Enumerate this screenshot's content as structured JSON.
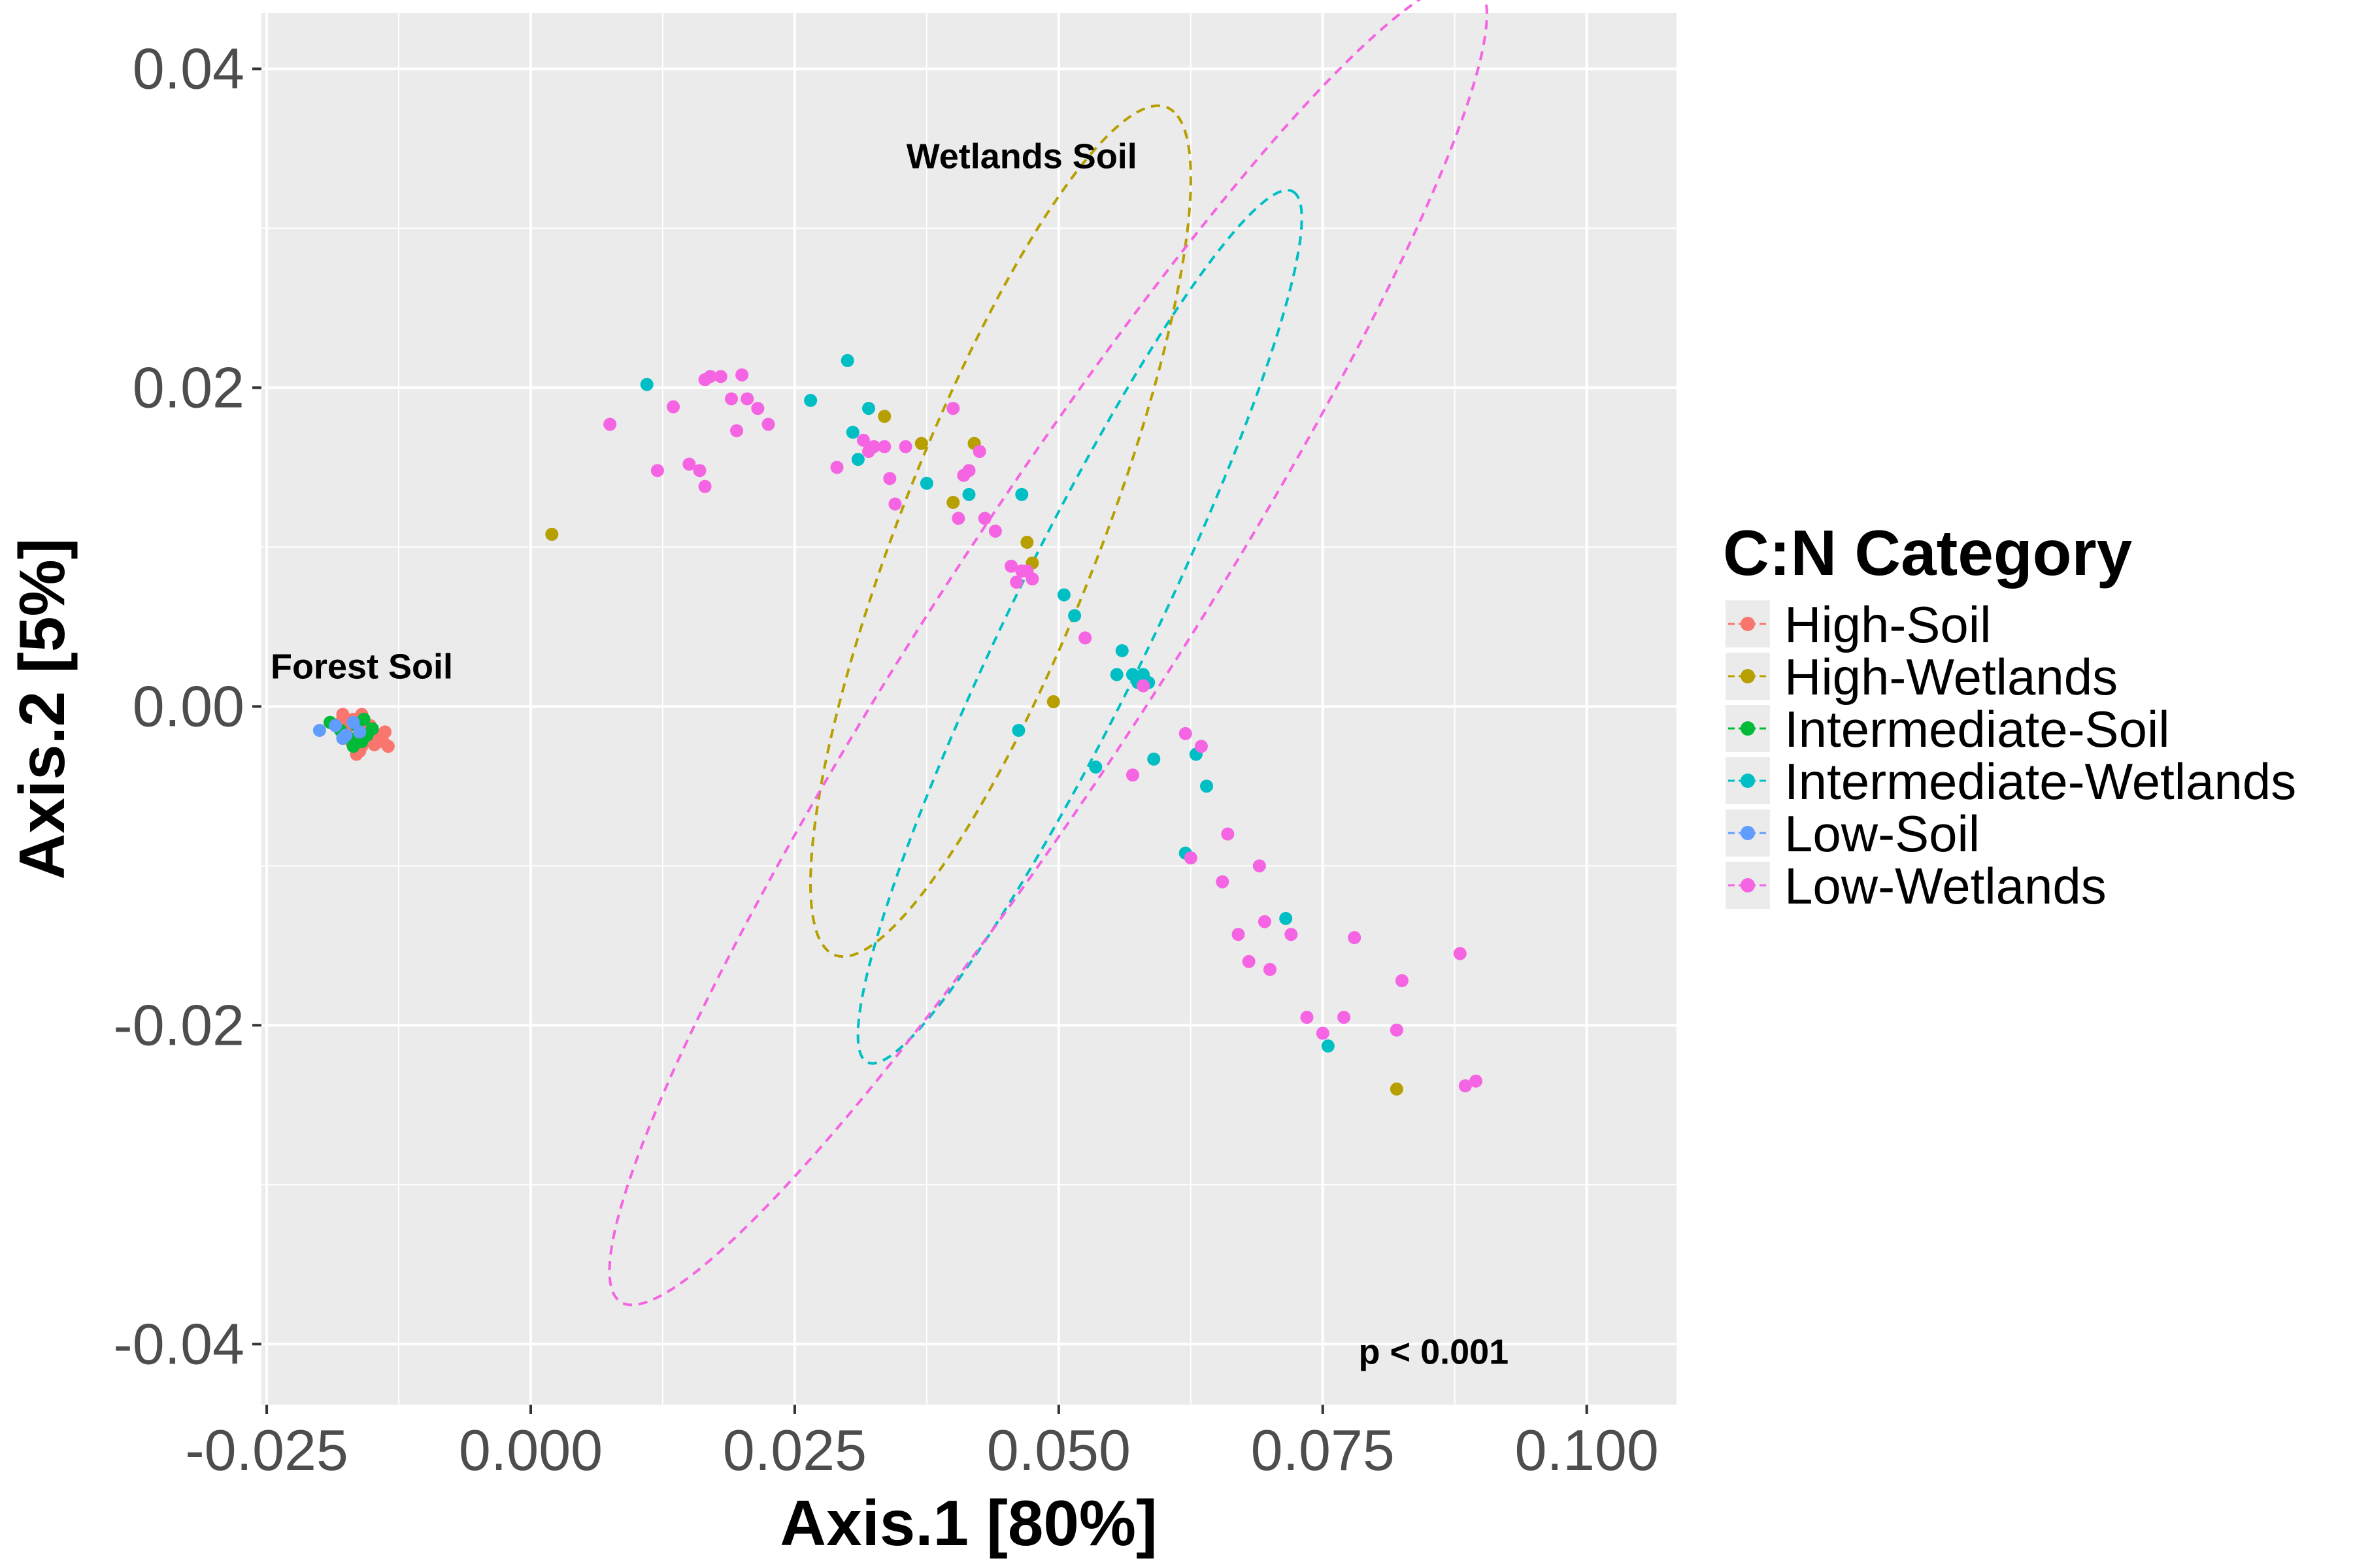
{
  "chart_data": {
    "type": "scatter",
    "title": "",
    "xlabel": "Axis.1   [80%]",
    "ylabel": "Axis.2   [5%]",
    "xlim": [
      -0.0255,
      0.1085
    ],
    "ylim": [
      -0.0438,
      0.0435
    ],
    "x_ticks": [
      -0.025,
      0.0,
      0.025,
      0.05,
      0.075,
      0.1
    ],
    "x_tick_labels": [
      "-0.025",
      "0.000",
      "0.025",
      "0.050",
      "0.075",
      "0.100"
    ],
    "y_ticks": [
      -0.04,
      -0.02,
      0.0,
      0.02,
      0.04
    ],
    "y_tick_labels": [
      "-0.04",
      "-0.02",
      "0.00",
      "0.02",
      "0.04"
    ],
    "grid": true,
    "legend": {
      "title": "C:N Category",
      "position": "right"
    },
    "annotations": [
      {
        "text": "Wetlands Soil",
        "x": 0.0465,
        "y": 0.0345
      },
      {
        "text": "Forest Soil",
        "x": -0.016,
        "y": 0.0025
      },
      {
        "text": "p < 0.001",
        "x": 0.0855,
        "y": -0.0405
      }
    ],
    "ellipses": [
      {
        "series": "High-Soil",
        "cx": -0.0167,
        "cy": -0.0015,
        "rx": 0.0017,
        "ry": 0.0009,
        "angle": 0
      },
      {
        "series": "High-Wetlands",
        "cx": 0.0445,
        "cy": 0.011,
        "rx": 0.031,
        "ry": 0.0087,
        "angle": 58
      },
      {
        "series": "Intermediate-Wetlands",
        "cx": 0.052,
        "cy": 0.005,
        "rx": 0.034,
        "ry": 0.006,
        "angle": 53
      },
      {
        "series": "Low-Wetlands",
        "cx": 0.049,
        "cy": 0.004,
        "rx": 0.058,
        "ry": 0.0094,
        "angle": 45
      }
    ],
    "series": [
      {
        "name": "High-Soil",
        "color": "#F8766D",
        "x": [
          -0.018,
          -0.0175,
          -0.017,
          -0.0165,
          -0.016,
          -0.0155,
          -0.015,
          -0.0145,
          -0.014,
          -0.0135,
          -0.0178,
          -0.0172,
          -0.0168,
          -0.0162,
          -0.0158,
          -0.0152,
          -0.0148,
          -0.0142,
          -0.0138,
          -0.0165,
          -0.016,
          -0.017
        ],
        "y": [
          -0.001,
          -0.0015,
          -0.002,
          -0.001,
          -0.0025,
          -0.0015,
          -0.002,
          -0.0018,
          -0.0022,
          -0.0025,
          -0.0005,
          -0.0012,
          -0.0008,
          -0.0028,
          -0.0018,
          -0.0012,
          -0.0024,
          -0.002,
          -0.0016,
          -0.003,
          -0.0005,
          -0.0022
        ]
      },
      {
        "name": "High-Wetlands",
        "color": "#B79F00",
        "x": [
          0.002,
          0.0335,
          0.037,
          0.04,
          0.042,
          0.047,
          0.0475,
          0.0495,
          0.082
        ],
        "y": [
          0.0108,
          0.0182,
          0.0165,
          0.0128,
          0.0165,
          0.0103,
          0.009,
          0.0003,
          -0.024
        ]
      },
      {
        "name": "Intermediate-Soil",
        "color": "#00BA38",
        "x": [
          -0.019,
          -0.018,
          -0.0172,
          -0.0165,
          -0.016,
          -0.0155,
          -0.015,
          -0.0168,
          -0.0158
        ],
        "y": [
          -0.001,
          -0.0015,
          -0.002,
          -0.0012,
          -0.0022,
          -0.0018,
          -0.0014,
          -0.0025,
          -0.0008
        ]
      },
      {
        "name": "Intermediate-Wetlands",
        "color": "#00BFC4",
        "x": [
          0.011,
          0.0265,
          0.03,
          0.0305,
          0.031,
          0.032,
          0.0375,
          0.0415,
          0.0465,
          0.0462,
          0.0505,
          0.0515,
          0.0535,
          0.0555,
          0.056,
          0.057,
          0.0575,
          0.058,
          0.0585,
          0.059,
          0.062,
          0.063,
          0.064,
          0.0715,
          0.0755
        ],
        "y": [
          0.0202,
          0.0192,
          0.0217,
          0.0172,
          0.0155,
          0.0187,
          0.014,
          0.0133,
          0.0133,
          -0.0015,
          0.007,
          0.0057,
          -0.0038,
          0.002,
          0.0035,
          0.002,
          0.0015,
          0.002,
          0.0015,
          -0.0033,
          -0.0092,
          -0.003,
          -0.005,
          -0.0133,
          -0.0213
        ]
      },
      {
        "name": "Low-Soil",
        "color": "#619CFF",
        "x": [
          -0.02,
          -0.0185,
          -0.0175,
          -0.0168,
          -0.0162,
          -0.0178
        ],
        "y": [
          -0.0015,
          -0.0012,
          -0.0018,
          -0.001,
          -0.0016,
          -0.002
        ]
      },
      {
        "name": "Low-Wetlands",
        "color": "#F564E3",
        "x": [
          0.0075,
          0.012,
          0.0135,
          0.015,
          0.016,
          0.0165,
          0.0165,
          0.017,
          0.018,
          0.019,
          0.0195,
          0.02,
          0.0205,
          0.0215,
          0.0225,
          0.029,
          0.0315,
          0.032,
          0.0325,
          0.0335,
          0.034,
          0.0345,
          0.0355,
          0.04,
          0.0405,
          0.041,
          0.0415,
          0.0425,
          0.043,
          0.044,
          0.0455,
          0.046,
          0.0465,
          0.047,
          0.0475,
          0.0525,
          0.057,
          0.058,
          0.062,
          0.0625,
          0.0635,
          0.0655,
          0.066,
          0.067,
          0.068,
          0.069,
          0.0695,
          0.07,
          0.072,
          0.0735,
          0.075,
          0.077,
          0.078,
          0.082,
          0.0825,
          0.088,
          0.0885,
          0.0895
        ],
        "y": [
          0.0177,
          0.0148,
          0.0188,
          0.0152,
          0.0148,
          0.0138,
          0.0205,
          0.0207,
          0.0207,
          0.0193,
          0.0173,
          0.0208,
          0.0193,
          0.0187,
          0.0177,
          0.015,
          0.0167,
          0.016,
          0.0163,
          0.0163,
          0.0143,
          0.0127,
          0.0163,
          0.0187,
          0.0118,
          0.0145,
          0.0148,
          0.016,
          0.0118,
          0.011,
          0.0088,
          0.0078,
          0.0085,
          0.0085,
          0.008,
          0.0043,
          -0.0043,
          0.0013,
          -0.0017,
          -0.0095,
          -0.0025,
          -0.011,
          -0.008,
          -0.0143,
          -0.016,
          -0.01,
          -0.0135,
          -0.0165,
          -0.0143,
          -0.0195,
          -0.0205,
          -0.0195,
          -0.0145,
          -0.0203,
          -0.0172,
          -0.0155,
          -0.0238,
          -0.0235
        ]
      }
    ]
  }
}
